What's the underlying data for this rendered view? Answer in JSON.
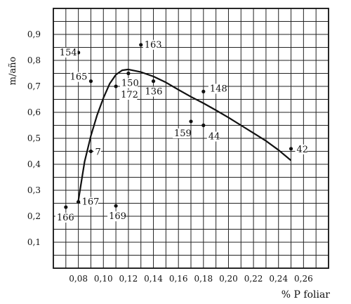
{
  "chart_data": {
    "type": "scatter",
    "title": "",
    "xlabel": "% P foliar",
    "ylabel": "m/año",
    "xlim": [
      0.06,
      0.28
    ],
    "ylim": [
      0,
      1.0
    ],
    "grid": true,
    "x_ticks": [
      "0,08",
      "0,10",
      "0,12",
      "0,14",
      "0,16",
      "0,18",
      "0,20",
      "0,22",
      "0,24",
      "0,26"
    ],
    "y_ticks": [
      "0,1",
      "0,2",
      "0,3",
      "0,4",
      "0,5",
      "0,6",
      "0,7",
      "0,8",
      "0,9"
    ],
    "points": [
      {
        "label": "154",
        "x": 0.08,
        "y": 0.83
      },
      {
        "label": "163",
        "x": 0.13,
        "y": 0.86
      },
      {
        "label": "165",
        "x": 0.09,
        "y": 0.72
      },
      {
        "label": "150",
        "x": 0.12,
        "y": 0.75
      },
      {
        "label": "172",
        "x": 0.11,
        "y": 0.7
      },
      {
        "label": "136",
        "x": 0.14,
        "y": 0.72
      },
      {
        "label": "148",
        "x": 0.18,
        "y": 0.68
      },
      {
        "label": "159",
        "x": 0.17,
        "y": 0.565
      },
      {
        "label": "44",
        "x": 0.18,
        "y": 0.55
      },
      {
        "label": "7",
        "x": 0.09,
        "y": 0.45
      },
      {
        "label": "42",
        "x": 0.25,
        "y": 0.46
      },
      {
        "label": "167",
        "x": 0.08,
        "y": 0.255
      },
      {
        "label": "169",
        "x": 0.11,
        "y": 0.24
      },
      {
        "label": "166",
        "x": 0.07,
        "y": 0.235
      }
    ],
    "fit_curve": [
      [
        0.08,
        0.26
      ],
      [
        0.085,
        0.41
      ],
      [
        0.09,
        0.51
      ],
      [
        0.095,
        0.59
      ],
      [
        0.1,
        0.655
      ],
      [
        0.105,
        0.71
      ],
      [
        0.11,
        0.745
      ],
      [
        0.115,
        0.762
      ],
      [
        0.12,
        0.765
      ],
      [
        0.13,
        0.755
      ],
      [
        0.14,
        0.738
      ],
      [
        0.15,
        0.715
      ],
      [
        0.16,
        0.687
      ],
      [
        0.17,
        0.66
      ],
      [
        0.18,
        0.635
      ],
      [
        0.19,
        0.608
      ],
      [
        0.2,
        0.58
      ],
      [
        0.21,
        0.55
      ],
      [
        0.22,
        0.52
      ],
      [
        0.23,
        0.49
      ],
      [
        0.24,
        0.455
      ],
      [
        0.25,
        0.415
      ]
    ],
    "colors": {
      "ink": "#111111",
      "grid": "#222222",
      "background": "#ffffff"
    }
  }
}
